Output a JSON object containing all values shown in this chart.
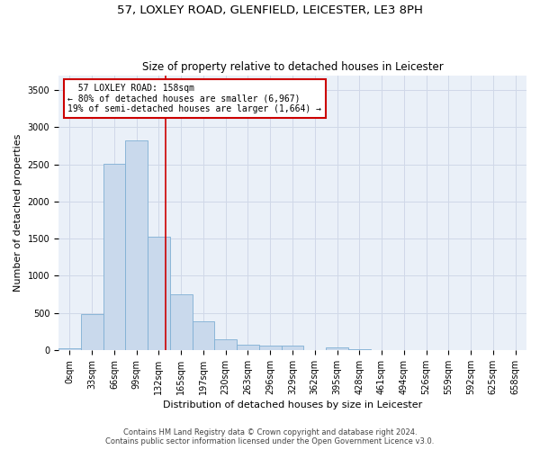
{
  "title_line1": "57, LOXLEY ROAD, GLENFIELD, LEICESTER, LE3 8PH",
  "title_line2": "Size of property relative to detached houses in Leicester",
  "xlabel": "Distribution of detached houses by size in Leicester",
  "ylabel": "Number of detached properties",
  "bar_color": "#c9d9ec",
  "bar_edge_color": "#7fafd4",
  "bin_labels": [
    "0sqm",
    "33sqm",
    "66sqm",
    "99sqm",
    "132sqm",
    "165sqm",
    "197sqm",
    "230sqm",
    "263sqm",
    "296sqm",
    "329sqm",
    "362sqm",
    "395sqm",
    "428sqm",
    "461sqm",
    "494sqm",
    "526sqm",
    "559sqm",
    "592sqm",
    "625sqm",
    "658sqm"
  ],
  "bar_heights": [
    20,
    480,
    2510,
    2820,
    1530,
    750,
    390,
    140,
    75,
    55,
    55,
    0,
    30,
    15,
    0,
    0,
    0,
    0,
    0,
    0,
    0
  ],
  "ylim": [
    0,
    3700
  ],
  "yticks": [
    0,
    500,
    1000,
    1500,
    2000,
    2500,
    3000,
    3500
  ],
  "vline_color": "#cc0000",
  "annotation_text": "  57 LOXLEY ROAD: 158sqm\n← 80% of detached houses are smaller (6,967)\n19% of semi-detached houses are larger (1,664) →",
  "annotation_box_color": "#ffffff",
  "annotation_border_color": "#cc0000",
  "grid_color": "#d0d8e8",
  "background_color": "#eaf0f8",
  "footer_line1": "Contains HM Land Registry data © Crown copyright and database right 2024.",
  "footer_line2": "Contains public sector information licensed under the Open Government Licence v3.0.",
  "title_fontsize": 9.5,
  "subtitle_fontsize": 8.5,
  "axis_label_fontsize": 8,
  "tick_fontsize": 7,
  "annotation_fontsize": 7,
  "footer_fontsize": 6
}
